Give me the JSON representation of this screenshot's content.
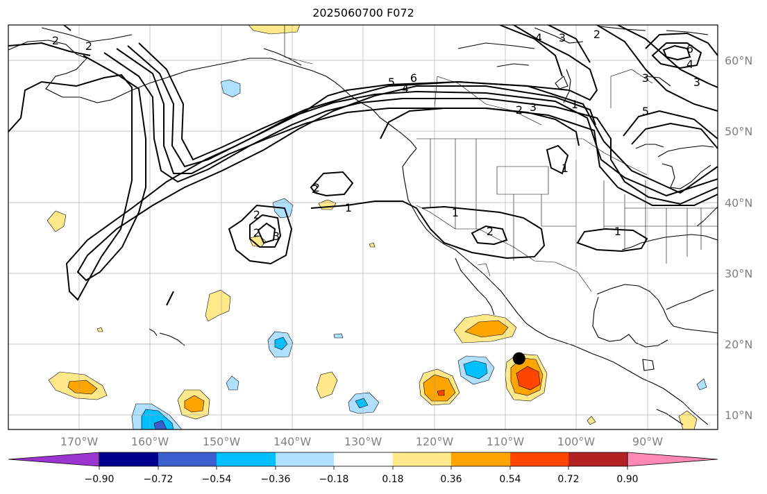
{
  "title": "2025060700 F072",
  "map": {
    "lon_labels": [
      "170°W",
      "160°W",
      "150°W",
      "140°W",
      "130°W",
      "120°W",
      "110°W",
      "100°W",
      "90°W"
    ],
    "lat_labels": [
      "60°N",
      "50°N",
      "40°N",
      "30°N",
      "20°N",
      "10°N"
    ],
    "marker": {
      "lon": -108.0,
      "lat": 18.0
    }
  },
  "colorbar": {
    "ticks": [
      "−0.90",
      "−0.72",
      "−0.54",
      "−0.36",
      "−0.18",
      "0.18",
      "0.36",
      "0.54",
      "0.72",
      "0.90"
    ],
    "colors": [
      "#9a35d0",
      "#00008f",
      "#3a5fcd",
      "#00bfff",
      "#b0e0ff",
      "#ffffff",
      "#ffe98a",
      "#ffa500",
      "#ff4500",
      "#b22222",
      "#ff88b4"
    ]
  },
  "contour_labels": [
    "2",
    "2",
    "1",
    "1",
    "2",
    "1",
    "2",
    "2",
    "2",
    "3",
    "5",
    "6",
    "4",
    "2",
    "3",
    "4",
    "3",
    "2",
    "6",
    "4",
    "3",
    "5",
    "1",
    "1",
    "3",
    "2"
  ],
  "chart_data": {
    "type": "heatmap",
    "title": "2025060700 F072",
    "xlim": [
      -180,
      -80
    ],
    "ylim": [
      8,
      65
    ],
    "shading_levels": [
      -0.9,
      -0.72,
      -0.54,
      -0.36,
      -0.18,
      0.18,
      0.36,
      0.54,
      0.72,
      0.9
    ],
    "contour_levels": [
      1,
      2,
      3,
      4,
      5,
      6
    ],
    "marker": {
      "lon": -108.0,
      "lat": 18.0
    }
  }
}
